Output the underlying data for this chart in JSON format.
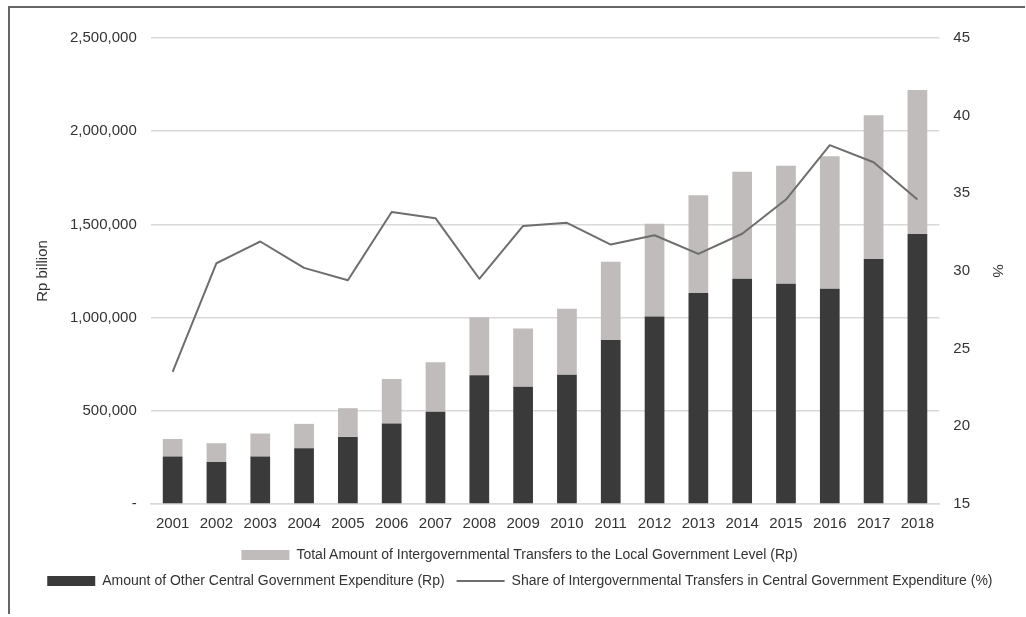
{
  "chart_data": {
    "type": "bar",
    "stacked": true,
    "categories": [
      "2001",
      "2002",
      "2003",
      "2004",
      "2005",
      "2006",
      "2007",
      "2008",
      "2009",
      "2010",
      "2011",
      "2012",
      "2013",
      "2014",
      "2015",
      "2016",
      "2017",
      "2018"
    ],
    "series": [
      {
        "name": "Amount of Other Central Government Expenditure (Rp)",
        "color": "#3a3a3a",
        "values": [
          255000,
          225000,
          255000,
          299000,
          360000,
          432000,
          495000,
          691000,
          629000,
          693000,
          880000,
          1006000,
          1132000,
          1208000,
          1182000,
          1155000,
          1315000,
          1448000
        ]
      },
      {
        "name": "Total Amount of Intergovernmental Transfers to the Local Government Level (Rp)",
        "color": "#bfbcbb",
        "values": [
          94000,
          101000,
          123000,
          131000,
          154000,
          239000,
          266000,
          311000,
          313000,
          354000,
          419000,
          497000,
          524000,
          574000,
          632000,
          711000,
          771000,
          773000
        ]
      },
      {
        "name": "Share of Intergovernmental Transfers in Central Government Expenditure (%)",
        "type": "line",
        "axis": "y2",
        "color": "#6e6e6e",
        "values": [
          23.5,
          30.5,
          31.9,
          30.2,
          29.4,
          33.8,
          33.4,
          29.5,
          32.9,
          33.1,
          31.7,
          32.3,
          31.1,
          32.4,
          34.6,
          38.1,
          37.0,
          34.6
        ]
      }
    ],
    "ylabel": "Rp billion",
    "y2label": "%",
    "ylim": [
      0,
      2500000
    ],
    "yticks": [
      {
        "value": 0,
        "label": "-"
      },
      {
        "value": 500000,
        "label": "500,000"
      },
      {
        "value": 1000000,
        "label": "1,000,000"
      },
      {
        "value": 1500000,
        "label": "1,500,000"
      },
      {
        "value": 2000000,
        "label": "2,000,000"
      },
      {
        "value": 2500000,
        "label": "2,500,000"
      }
    ],
    "y2lim": [
      15,
      45
    ],
    "y2ticks": [
      15,
      20,
      25,
      30,
      35,
      40,
      45
    ],
    "grid": "y",
    "legend": "bottom",
    "marker": "none",
    "line_style": "solid"
  }
}
